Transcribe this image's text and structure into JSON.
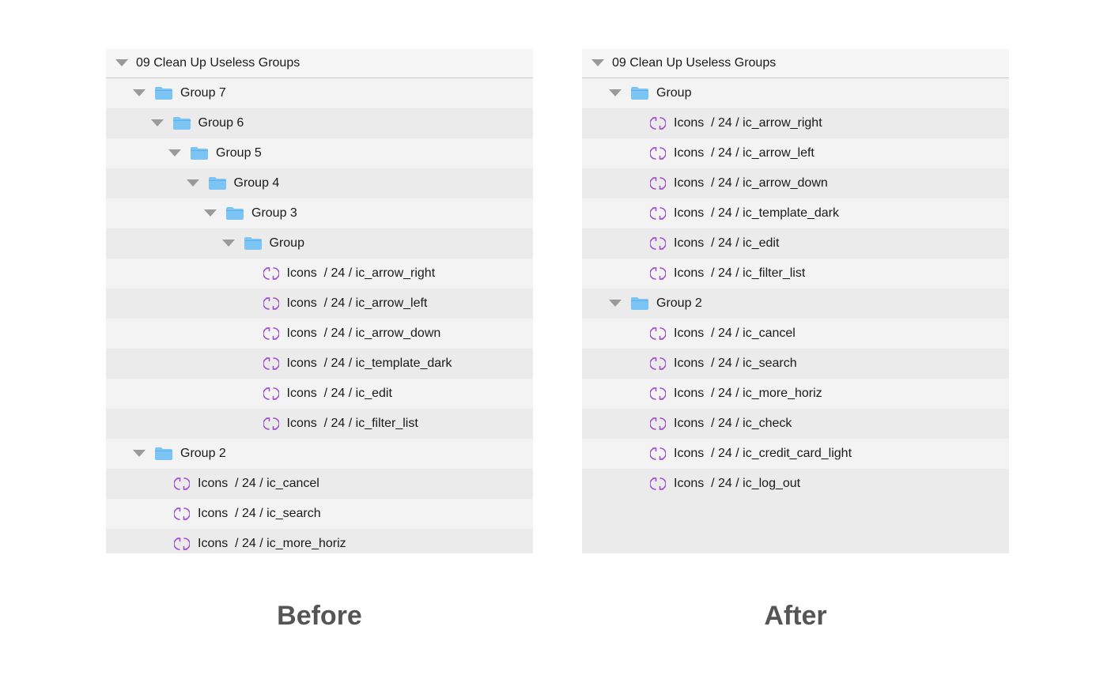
{
  "before": {
    "caption": "Before",
    "page_title": "09 Clean Up Useless Groups",
    "rows": [
      {
        "label": "Group 7",
        "type": "group",
        "level": 1
      },
      {
        "label": "Group 6",
        "type": "group",
        "level": 2
      },
      {
        "label": "Group 5",
        "type": "group",
        "level": 3
      },
      {
        "label": "Group 4",
        "type": "group",
        "level": 4
      },
      {
        "label": "Group 3",
        "type": "group",
        "level": 5
      },
      {
        "label": "Group",
        "type": "group",
        "level": 6
      },
      {
        "label": "Icons  / 24 / ic_arrow_right",
        "type": "symbol",
        "level": 7
      },
      {
        "label": "Icons  / 24 / ic_arrow_left",
        "type": "symbol",
        "level": 7
      },
      {
        "label": "Icons  / 24 / ic_arrow_down",
        "type": "symbol",
        "level": 7
      },
      {
        "label": "Icons  / 24 / ic_template_dark",
        "type": "symbol",
        "level": 7
      },
      {
        "label": "Icons  / 24 / ic_edit",
        "type": "symbol",
        "level": 7
      },
      {
        "label": "Icons  / 24 / ic_filter_list",
        "type": "symbol",
        "level": 7
      },
      {
        "label": "Group 2",
        "type": "group",
        "level": 1
      },
      {
        "label": "Icons  / 24 / ic_cancel",
        "type": "symbol",
        "level": 2
      },
      {
        "label": "Icons  / 24 / ic_search",
        "type": "symbol",
        "level": 2
      },
      {
        "label": "Icons  / 24 / ic_more_horiz",
        "type": "symbol",
        "level": 2
      }
    ]
  },
  "after": {
    "caption": "After",
    "page_title": "09 Clean Up Useless Groups",
    "rows": [
      {
        "label": "Group",
        "type": "group",
        "level": 1
      },
      {
        "label": "Icons  / 24 / ic_arrow_right",
        "type": "symbol",
        "level": 2
      },
      {
        "label": "Icons  / 24 / ic_arrow_left",
        "type": "symbol",
        "level": 2
      },
      {
        "label": "Icons  / 24 / ic_arrow_down",
        "type": "symbol",
        "level": 2
      },
      {
        "label": "Icons  / 24 / ic_template_dark",
        "type": "symbol",
        "level": 2
      },
      {
        "label": "Icons  / 24 / ic_edit",
        "type": "symbol",
        "level": 2
      },
      {
        "label": "Icons  / 24 / ic_filter_list",
        "type": "symbol",
        "level": 2
      },
      {
        "label": "Group 2",
        "type": "group",
        "level": 1
      },
      {
        "label": "Icons  / 24 / ic_cancel",
        "type": "symbol",
        "level": 2
      },
      {
        "label": "Icons  / 24 / ic_search",
        "type": "symbol",
        "level": 2
      },
      {
        "label": "Icons  / 24 / ic_more_horiz",
        "type": "symbol",
        "level": 2
      },
      {
        "label": "Icons  / 24 / ic_check",
        "type": "symbol",
        "level": 2
      },
      {
        "label": "Icons  / 24 / ic_credit_card_light",
        "type": "symbol",
        "level": 2
      },
      {
        "label": "Icons  / 24 / ic_log_out",
        "type": "symbol",
        "level": 2
      }
    ]
  },
  "colors": {
    "folder": "#7cc4f4",
    "symbol": "#a24fd0",
    "caption": "#555555"
  },
  "icons": {
    "group": "folder-icon",
    "symbol": "symbol-icon",
    "expand": "disclosure-triangle-icon"
  }
}
